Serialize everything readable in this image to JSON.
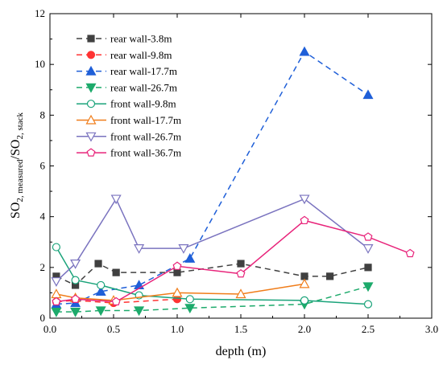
{
  "chart_data": {
    "type": "line",
    "xlabel": "depth (m)",
    "ylabel": "SO2, measured/SO2, stack",
    "xlim": [
      0.0,
      3.0
    ],
    "ylim": [
      0,
      12
    ],
    "xticks": [
      "0.0",
      "0.5",
      "1.0",
      "1.5",
      "2.0",
      "2.5",
      "3.0"
    ],
    "yticks": [
      "0",
      "2",
      "4",
      "6",
      "8",
      "10",
      "12"
    ],
    "legend_position": "top-left",
    "series": [
      {
        "name": "rear wall-3.8m",
        "color": "#404040",
        "dash": true,
        "marker": "square",
        "filled": true,
        "x": [
          0.05,
          0.2,
          0.38,
          0.52,
          1.0,
          1.5,
          2.0,
          2.2,
          2.5
        ],
        "y": [
          1.65,
          1.3,
          2.15,
          1.8,
          1.8,
          2.15,
          1.65,
          1.65,
          2.0
        ]
      },
      {
        "name": "rear wall-9.8m",
        "color": "#ff3333",
        "dash": true,
        "marker": "circle",
        "filled": true,
        "x": [
          0.05,
          0.2,
          0.5,
          1.0
        ],
        "y": [
          0.65,
          0.7,
          0.6,
          0.75
        ]
      },
      {
        "name": "rear wall-17.7m",
        "color": "#1f5fd8",
        "dash": true,
        "marker": "triangle-up",
        "filled": true,
        "x": [
          0.05,
          0.2,
          0.4,
          0.7,
          1.1,
          2.0,
          2.5
        ],
        "y": [
          0.55,
          0.6,
          1.05,
          1.3,
          2.35,
          10.5,
          8.8
        ]
      },
      {
        "name": "rear wall-26.7m",
        "color": "#1daa6b",
        "dash": true,
        "marker": "triangle-down",
        "filled": true,
        "x": [
          0.05,
          0.2,
          0.4,
          0.7,
          1.1,
          2.0,
          2.5
        ],
        "y": [
          0.25,
          0.25,
          0.3,
          0.3,
          0.4,
          0.55,
          1.25
        ]
      },
      {
        "name": "front wall-9.8m",
        "color": "#1aa37a",
        "dash": false,
        "marker": "circle",
        "filled": false,
        "x": [
          0.05,
          0.2,
          0.4,
          0.7,
          1.1,
          2.0,
          2.5
        ],
        "y": [
          2.8,
          1.5,
          1.3,
          0.9,
          0.75,
          0.7,
          0.55
        ]
      },
      {
        "name": "front wall-17.7m",
        "color": "#f07d1a",
        "dash": false,
        "marker": "triangle-up",
        "filled": false,
        "x": [
          0.05,
          0.2,
          0.5,
          1.0,
          1.5,
          2.0
        ],
        "y": [
          0.95,
          0.8,
          0.7,
          1.0,
          0.95,
          1.35
        ]
      },
      {
        "name": "front wall-26.7m",
        "color": "#7a73bf",
        "dash": false,
        "marker": "triangle-down",
        "filled": false,
        "x": [
          0.05,
          0.2,
          0.52,
          0.7,
          1.05,
          2.0,
          2.5
        ],
        "y": [
          1.45,
          2.15,
          4.7,
          2.75,
          2.75,
          4.7,
          2.75
        ]
      },
      {
        "name": "front wall-36.7m",
        "color": "#e8237a",
        "dash": false,
        "marker": "pentagon",
        "filled": false,
        "x": [
          0.05,
          0.2,
          0.52,
          1.0,
          1.5,
          2.0,
          2.5,
          2.83
        ],
        "y": [
          0.65,
          0.75,
          0.65,
          2.05,
          1.75,
          3.85,
          3.2,
          2.55
        ]
      }
    ]
  }
}
